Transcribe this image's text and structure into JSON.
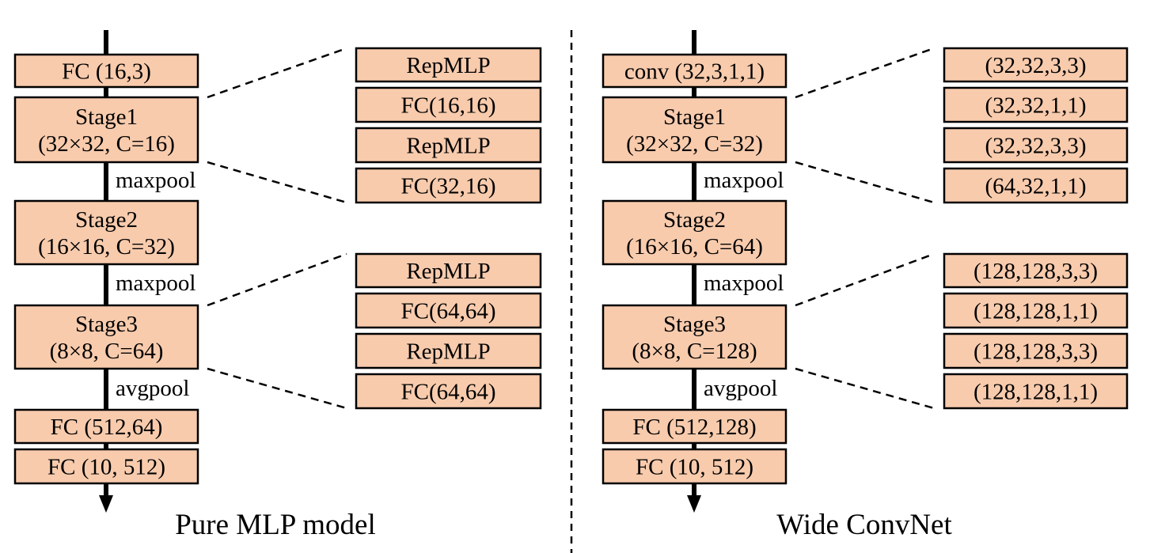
{
  "panels": [
    {
      "caption": "Pure MLP model",
      "main_blocks": [
        {
          "lines": [
            "FC (16,3)"
          ]
        },
        {
          "lines": [
            "Stage1",
            "(32×32, C=16)"
          ]
        },
        {
          "lines": [
            "Stage2",
            "(16×16, C=32)"
          ]
        },
        {
          "lines": [
            "Stage3",
            "(8×8, C=64)"
          ]
        },
        {
          "lines": [
            "FC (512,64)"
          ]
        },
        {
          "lines": [
            "FC (10, 512)"
          ]
        }
      ],
      "transitions": [
        "maxpool",
        "maxpool",
        "avgpool"
      ],
      "expansions": [
        {
          "stage": "Stage1",
          "items": [
            "RepMLP",
            "FC(16,16)",
            "RepMLP",
            "FC(32,16)"
          ]
        },
        {
          "stage": "Stage3",
          "items": [
            "RepMLP",
            "FC(64,64)",
            "RepMLP",
            "FC(64,64)"
          ]
        }
      ]
    },
    {
      "caption": "Wide ConvNet",
      "main_blocks": [
        {
          "lines": [
            "conv (32,3,1,1)"
          ]
        },
        {
          "lines": [
            "Stage1",
            "(32×32, C=32)"
          ]
        },
        {
          "lines": [
            "Stage2",
            "(16×16, C=64)"
          ]
        },
        {
          "lines": [
            "Stage3",
            "(8×8, C=128)"
          ]
        },
        {
          "lines": [
            "FC (512,128)"
          ]
        },
        {
          "lines": [
            "FC (10, 512)"
          ]
        }
      ],
      "transitions": [
        "maxpool",
        "maxpool",
        "avgpool"
      ],
      "expansions": [
        {
          "stage": "Stage1",
          "items": [
            "(32,32,3,3)",
            "(32,32,1,1)",
            "(32,32,3,3)",
            "(64,32,1,1)"
          ]
        },
        {
          "stage": "Stage3",
          "items": [
            "(128,128,3,3)",
            "(128,128,1,1)",
            "(128,128,3,3)",
            "(128,128,1,1)"
          ]
        }
      ]
    }
  ]
}
